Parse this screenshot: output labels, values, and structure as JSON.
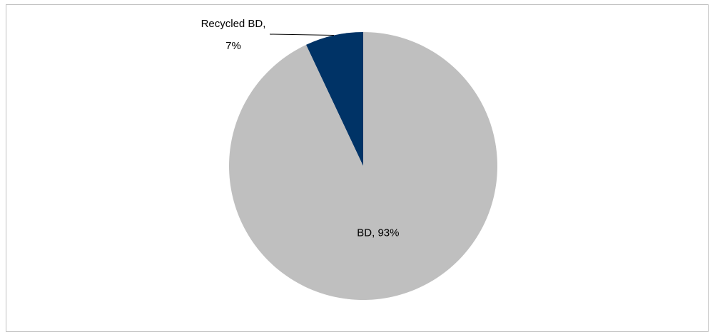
{
  "chart_data": {
    "type": "pie",
    "title": "",
    "slices": [
      {
        "name": "Recycled BD",
        "value": 7,
        "label_line1": "Recycled BD,",
        "label_line2": "7%",
        "color": "#003366"
      },
      {
        "name": "BD",
        "value": 93,
        "label": "BD, 93%",
        "color": "#bfbfbf"
      }
    ],
    "legend": "none",
    "data_labels": "outside-with-leader for small slice, inside for large slice"
  }
}
